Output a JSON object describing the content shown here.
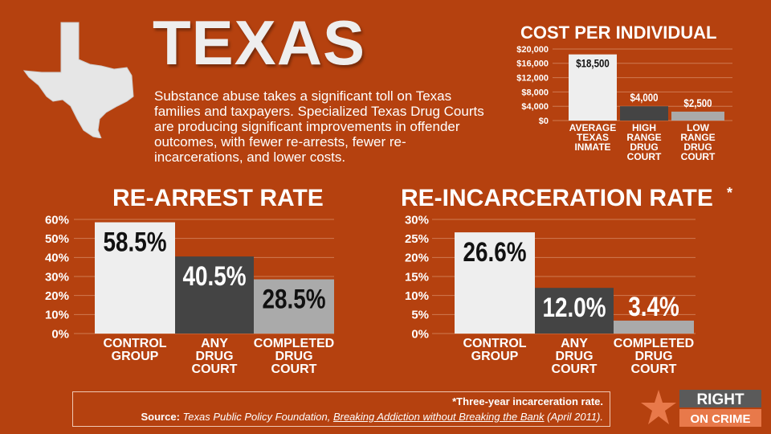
{
  "header": {
    "title": "TEXAS",
    "intro": "Substance abuse takes a significant toll on Texas families and taxpayers. Specialized Texas Drug Courts are producing significant improvements in offender outcomes, with fewer re-arrests, fewer re-incarcerations, and lower costs."
  },
  "colors": {
    "background": "#b5410f",
    "bar_light": "#eeeeee",
    "bar_dark": "#444444",
    "bar_gray": "#aaaaaa"
  },
  "chart_data": [
    {
      "type": "bar",
      "title": "COST PER INDIVIDUAL",
      "categories": [
        [
          "AVERAGE",
          "TEXAS",
          "INMATE"
        ],
        [
          "HIGH",
          "RANGE",
          "DRUG",
          "COURT"
        ],
        [
          "LOW",
          "RANGE",
          "DRUG",
          "COURT"
        ]
      ],
      "values": [
        18500,
        4000,
        2500
      ],
      "value_labels": [
        "$18,500",
        "$4,000",
        "$2,500"
      ],
      "ylim": [
        0,
        20000
      ],
      "yticks": [
        0,
        4000,
        8000,
        12000,
        16000,
        20000
      ],
      "ytick_labels": [
        "$0",
        "$4,000",
        "$8,000",
        "$12,000",
        "$16,000",
        "$20,000"
      ],
      "grid": true,
      "bar_colors": [
        "#eeeeee",
        "#444444",
        "#aaaaaa"
      ]
    },
    {
      "type": "bar",
      "title": "RE-ARREST RATE",
      "categories": [
        [
          "CONTROL",
          "GROUP"
        ],
        [
          "ANY",
          "DRUG",
          "COURT"
        ],
        [
          "COMPLETED",
          "DRUG",
          "COURT"
        ]
      ],
      "values": [
        58.5,
        40.5,
        28.5
      ],
      "value_labels": [
        "58.5%",
        "40.5%",
        "28.5%"
      ],
      "ylim": [
        0,
        60
      ],
      "yticks": [
        0,
        10,
        20,
        30,
        40,
        50,
        60
      ],
      "ytick_labels": [
        "0%",
        "10%",
        "20%",
        "30%",
        "40%",
        "50%",
        "60%"
      ],
      "grid": true,
      "bar_colors": [
        "#eeeeee",
        "#444444",
        "#aaaaaa"
      ]
    },
    {
      "type": "bar",
      "title": "RE-INCARCERATION RATE",
      "title_mark": "*",
      "categories": [
        [
          "CONTROL",
          "GROUP"
        ],
        [
          "ANY",
          "DRUG",
          "COURT"
        ],
        [
          "COMPLETED",
          "DRUG",
          "COURT"
        ]
      ],
      "values": [
        26.6,
        12.0,
        3.4
      ],
      "value_labels": [
        "26.6%",
        "12.0%",
        "3.4%"
      ],
      "ylim": [
        0,
        30
      ],
      "yticks": [
        0,
        5,
        10,
        15,
        20,
        25,
        30
      ],
      "ytick_labels": [
        "0%",
        "5%",
        "10%",
        "15%",
        "20%",
        "25%",
        "30%"
      ],
      "grid": true,
      "bar_colors": [
        "#eeeeee",
        "#444444",
        "#aaaaaa"
      ]
    }
  ],
  "footer": {
    "footnote": "*Three-year incarceration rate.",
    "source_label": "Source:",
    "source_publisher": "Texas Public Policy Foundation,",
    "source_title": "Breaking Addiction without Breaking the Bank",
    "source_date": "(April 2011)."
  },
  "logo": {
    "line1": "RIGHT",
    "line2": "ON CRIME",
    "icon": "star-icon"
  }
}
